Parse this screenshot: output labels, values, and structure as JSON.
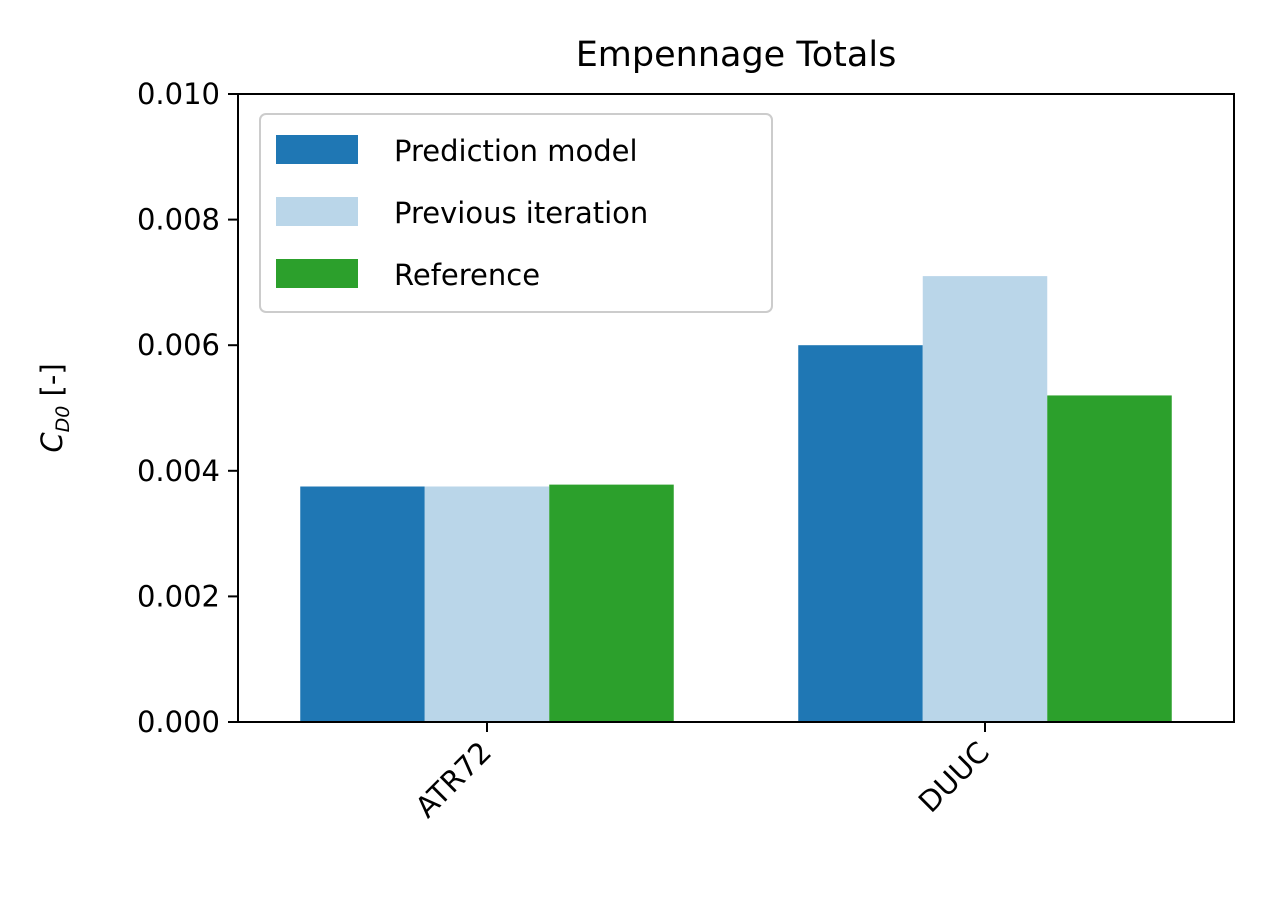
{
  "chart_data": {
    "type": "bar",
    "title": "Empennage Totals",
    "ylabel": {
      "main": "C",
      "subscript": "D0",
      "suffix": " [-]"
    },
    "xlabel": "",
    "categories": [
      "ATR72",
      "DUUC"
    ],
    "series": [
      {
        "name": "Prediction model",
        "color": "#1f77b4",
        "values": [
          0.00375,
          0.006
        ]
      },
      {
        "name": "Previous iteration",
        "color": "#bad6e9",
        "values": [
          0.00375,
          0.0071
        ]
      },
      {
        "name": "Reference",
        "color": "#2ca02c",
        "values": [
          0.00378,
          0.0052
        ]
      }
    ],
    "ylim": [
      0,
      0.01
    ],
    "yticks": [
      "0.000",
      "0.002",
      "0.004",
      "0.006",
      "0.008",
      "0.010"
    ],
    "ytick_values": [
      0,
      0.002,
      0.004,
      0.006,
      0.008,
      0.01
    ],
    "legend_position": "upper-left",
    "grid": false
  }
}
